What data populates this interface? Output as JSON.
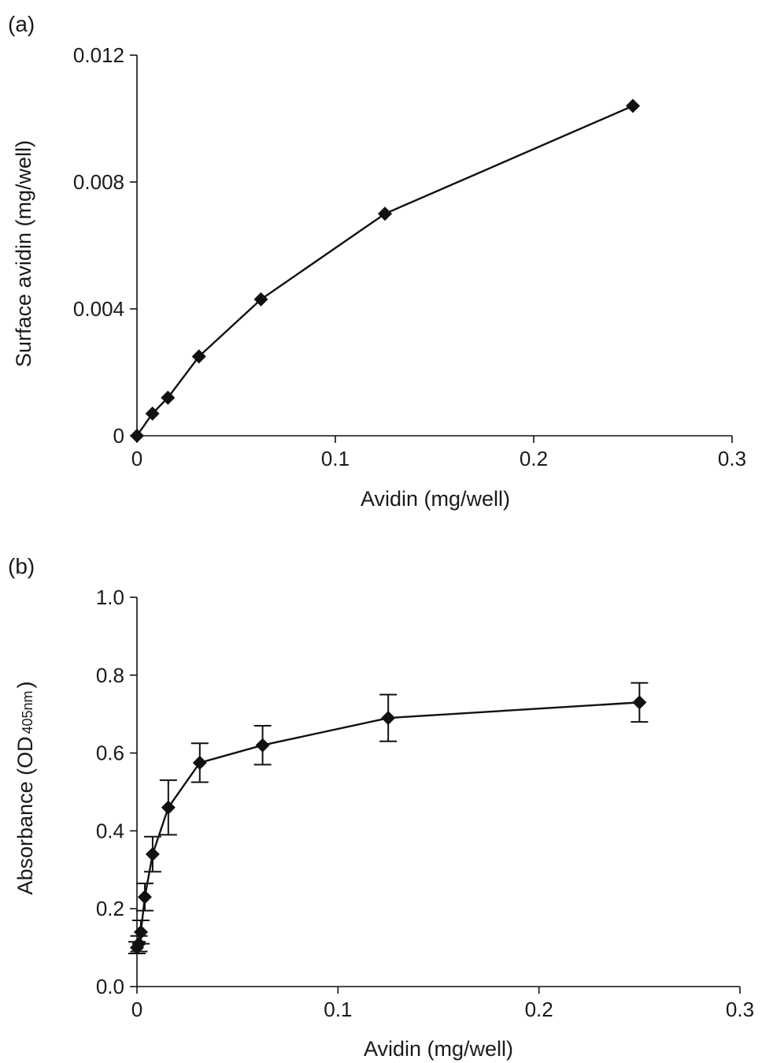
{
  "chart_data": [
    {
      "type": "line",
      "panel_label": "(a)",
      "title": "",
      "xlabel": "Avidin (mg/well)",
      "ylabel": "Surface avidin (mg/well)",
      "xlim": [
        0,
        0.3
      ],
      "ylim": [
        0,
        0.012
      ],
      "x_ticks": [
        0,
        0.1,
        0.2,
        0.3
      ],
      "x_tick_labels": [
        "0",
        "0.1",
        "0.2",
        "0.3"
      ],
      "y_ticks": [
        0,
        0.004,
        0.008,
        0.012
      ],
      "y_tick_labels": [
        "0",
        "0.004",
        "0.008",
        "0.012"
      ],
      "grid": false,
      "marker": "diamond",
      "series": [
        {
          "x": [
            0,
            0.0078,
            0.0156,
            0.03125,
            0.0625,
            0.125,
            0.25
          ],
          "y": [
            0.0,
            0.0007,
            0.0012,
            0.0025,
            0.0043,
            0.007,
            0.0104
          ]
        }
      ]
    },
    {
      "type": "line",
      "panel_label": "(b)",
      "title": "",
      "xlabel": "Avidin (mg/well)",
      "ylabel_main": "Absorbance (OD",
      "ylabel_sub": "405nm",
      "ylabel_close": ")",
      "xlim": [
        0,
        0.3
      ],
      "ylim": [
        0,
        1.0
      ],
      "x_ticks": [
        0,
        0.1,
        0.2,
        0.3
      ],
      "x_tick_labels": [
        "0",
        "0.1",
        "0.2",
        "0.3"
      ],
      "y_ticks": [
        0,
        0.2,
        0.4,
        0.6,
        0.8,
        1.0
      ],
      "y_tick_labels": [
        "0.0",
        "0.2",
        "0.4",
        "0.6",
        "0.8",
        "1.0"
      ],
      "grid": false,
      "marker": "diamond",
      "series": [
        {
          "x": [
            0,
            0.00098,
            0.00195,
            0.0039,
            0.0078,
            0.0156,
            0.03125,
            0.0625,
            0.125,
            0.25
          ],
          "y": [
            0.1,
            0.11,
            0.14,
            0.23,
            0.34,
            0.46,
            0.575,
            0.62,
            0.69,
            0.73
          ],
          "error": [
            0.015,
            0.02,
            0.03,
            0.035,
            0.045,
            0.07,
            0.05,
            0.05,
            0.06,
            0.05
          ]
        }
      ]
    }
  ]
}
